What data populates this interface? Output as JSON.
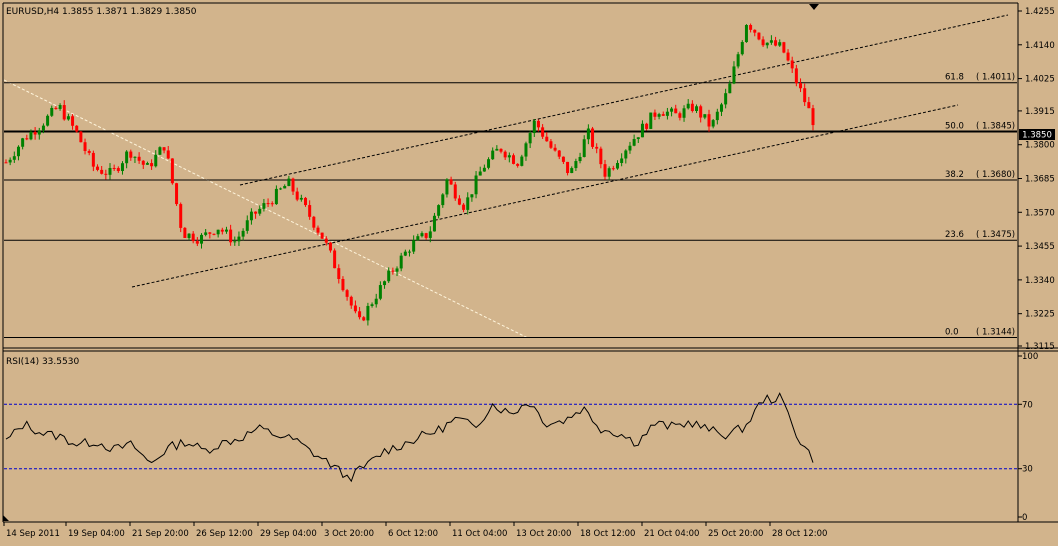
{
  "chart_data": [
    {
      "type": "candlestick",
      "title": "EURUSD,H4  1.3855 1.3871 1.3829 1.3850",
      "ylim": [
        1.31,
        1.43
      ],
      "y_ticks": [
        "1.4255",
        "1.4140",
        "1.4025",
        "1.3915",
        "1.3800",
        "1.3685",
        "1.3570",
        "1.3455",
        "1.3340",
        "1.3225",
        "1.3115"
      ],
      "current_price": "1.3850",
      "x_labels": [
        "14 Sep 2011",
        "19 Sep 04:00",
        "21 Sep 20:00",
        "26 Sep 12:00",
        "29 Sep 04:00",
        "3 Oct 20:00",
        "6 Oct 12:00",
        "11 Oct 04:00",
        "13 Oct 20:00",
        "18 Oct 12:00",
        "21 Oct 04:00",
        "25 Oct 20:00",
        "28 Oct 12:00"
      ],
      "fibonacci": [
        {
          "level": "61.8",
          "price": "1.4011"
        },
        {
          "level": "50.0",
          "price": "1.3845"
        },
        {
          "level": "38.2",
          "price": "1.3680"
        },
        {
          "level": "23.6",
          "price": "1.3475"
        },
        {
          "level": "0.0",
          "price": "1.3144"
        }
      ],
      "anchors": [
        [
          1.374,
          1.382
        ],
        [
          1.382,
          1.387
        ],
        [
          1.387,
          1.393
        ],
        [
          1.393,
          1.384
        ],
        [
          1.384,
          1.372
        ],
        [
          1.372,
          1.37
        ],
        [
          1.37,
          1.378
        ],
        [
          1.378,
          1.372
        ],
        [
          1.372,
          1.38
        ],
        [
          1.38,
          1.35
        ],
        [
          1.35,
          1.348
        ],
        [
          1.348,
          1.352
        ],
        [
          1.352,
          1.347
        ],
        [
          1.347,
          1.356
        ],
        [
          1.356,
          1.361
        ],
        [
          1.361,
          1.367
        ],
        [
          1.367,
          1.358
        ],
        [
          1.358,
          1.348
        ],
        [
          1.348,
          1.334
        ],
        [
          1.334,
          1.319
        ],
        [
          1.319,
          1.329
        ],
        [
          1.329,
          1.338
        ],
        [
          1.338,
          1.346
        ],
        [
          1.346,
          1.35
        ],
        [
          1.35,
          1.368
        ],
        [
          1.368,
          1.359
        ],
        [
          1.359,
          1.372
        ],
        [
          1.372,
          1.379
        ],
        [
          1.379,
          1.374
        ],
        [
          1.374,
          1.388
        ],
        [
          1.388,
          1.378
        ],
        [
          1.378,
          1.37
        ],
        [
          1.37,
          1.384
        ],
        [
          1.384,
          1.37
        ],
        [
          1.37,
          1.378
        ],
        [
          1.378,
          1.385
        ],
        [
          1.385,
          1.392
        ],
        [
          1.392,
          1.39
        ],
        [
          1.39,
          1.393
        ],
        [
          1.393,
          1.386
        ],
        [
          1.386,
          1.399
        ],
        [
          1.399,
          1.422
        ],
        [
          1.422,
          1.415
        ],
        [
          1.415,
          1.413
        ],
        [
          1.413,
          1.399
        ],
        [
          1.399,
          1.385
        ]
      ],
      "candle_count": 195
    },
    {
      "type": "line",
      "title": "RSI(14) 33.5530",
      "ylim": [
        0,
        100
      ],
      "y_ticks": [
        "100",
        "70",
        "30",
        "0"
      ],
      "levels": [
        70,
        30
      ],
      "anchors": [
        47,
        58,
        52,
        50,
        45,
        47,
        42,
        45,
        33,
        43,
        47,
        41,
        46,
        49,
        55,
        51,
        48,
        40,
        33,
        24,
        32,
        41,
        45,
        50,
        54,
        61,
        56,
        70,
        64,
        72,
        58,
        60,
        68,
        55,
        52,
        46,
        58,
        56,
        59,
        54,
        51,
        56,
        73,
        74,
        48,
        33
      ]
    }
  ],
  "colors": {
    "background": "#D2B48C",
    "bull_candle": "#008000",
    "bear_candle": "#FF0000",
    "lines": "#000000",
    "rsi_levels": "#0000CC",
    "price_tag_bg": "#000000",
    "price_tag_text": "#FFFFFF",
    "fib_diagonal": "#FFF5DC"
  }
}
